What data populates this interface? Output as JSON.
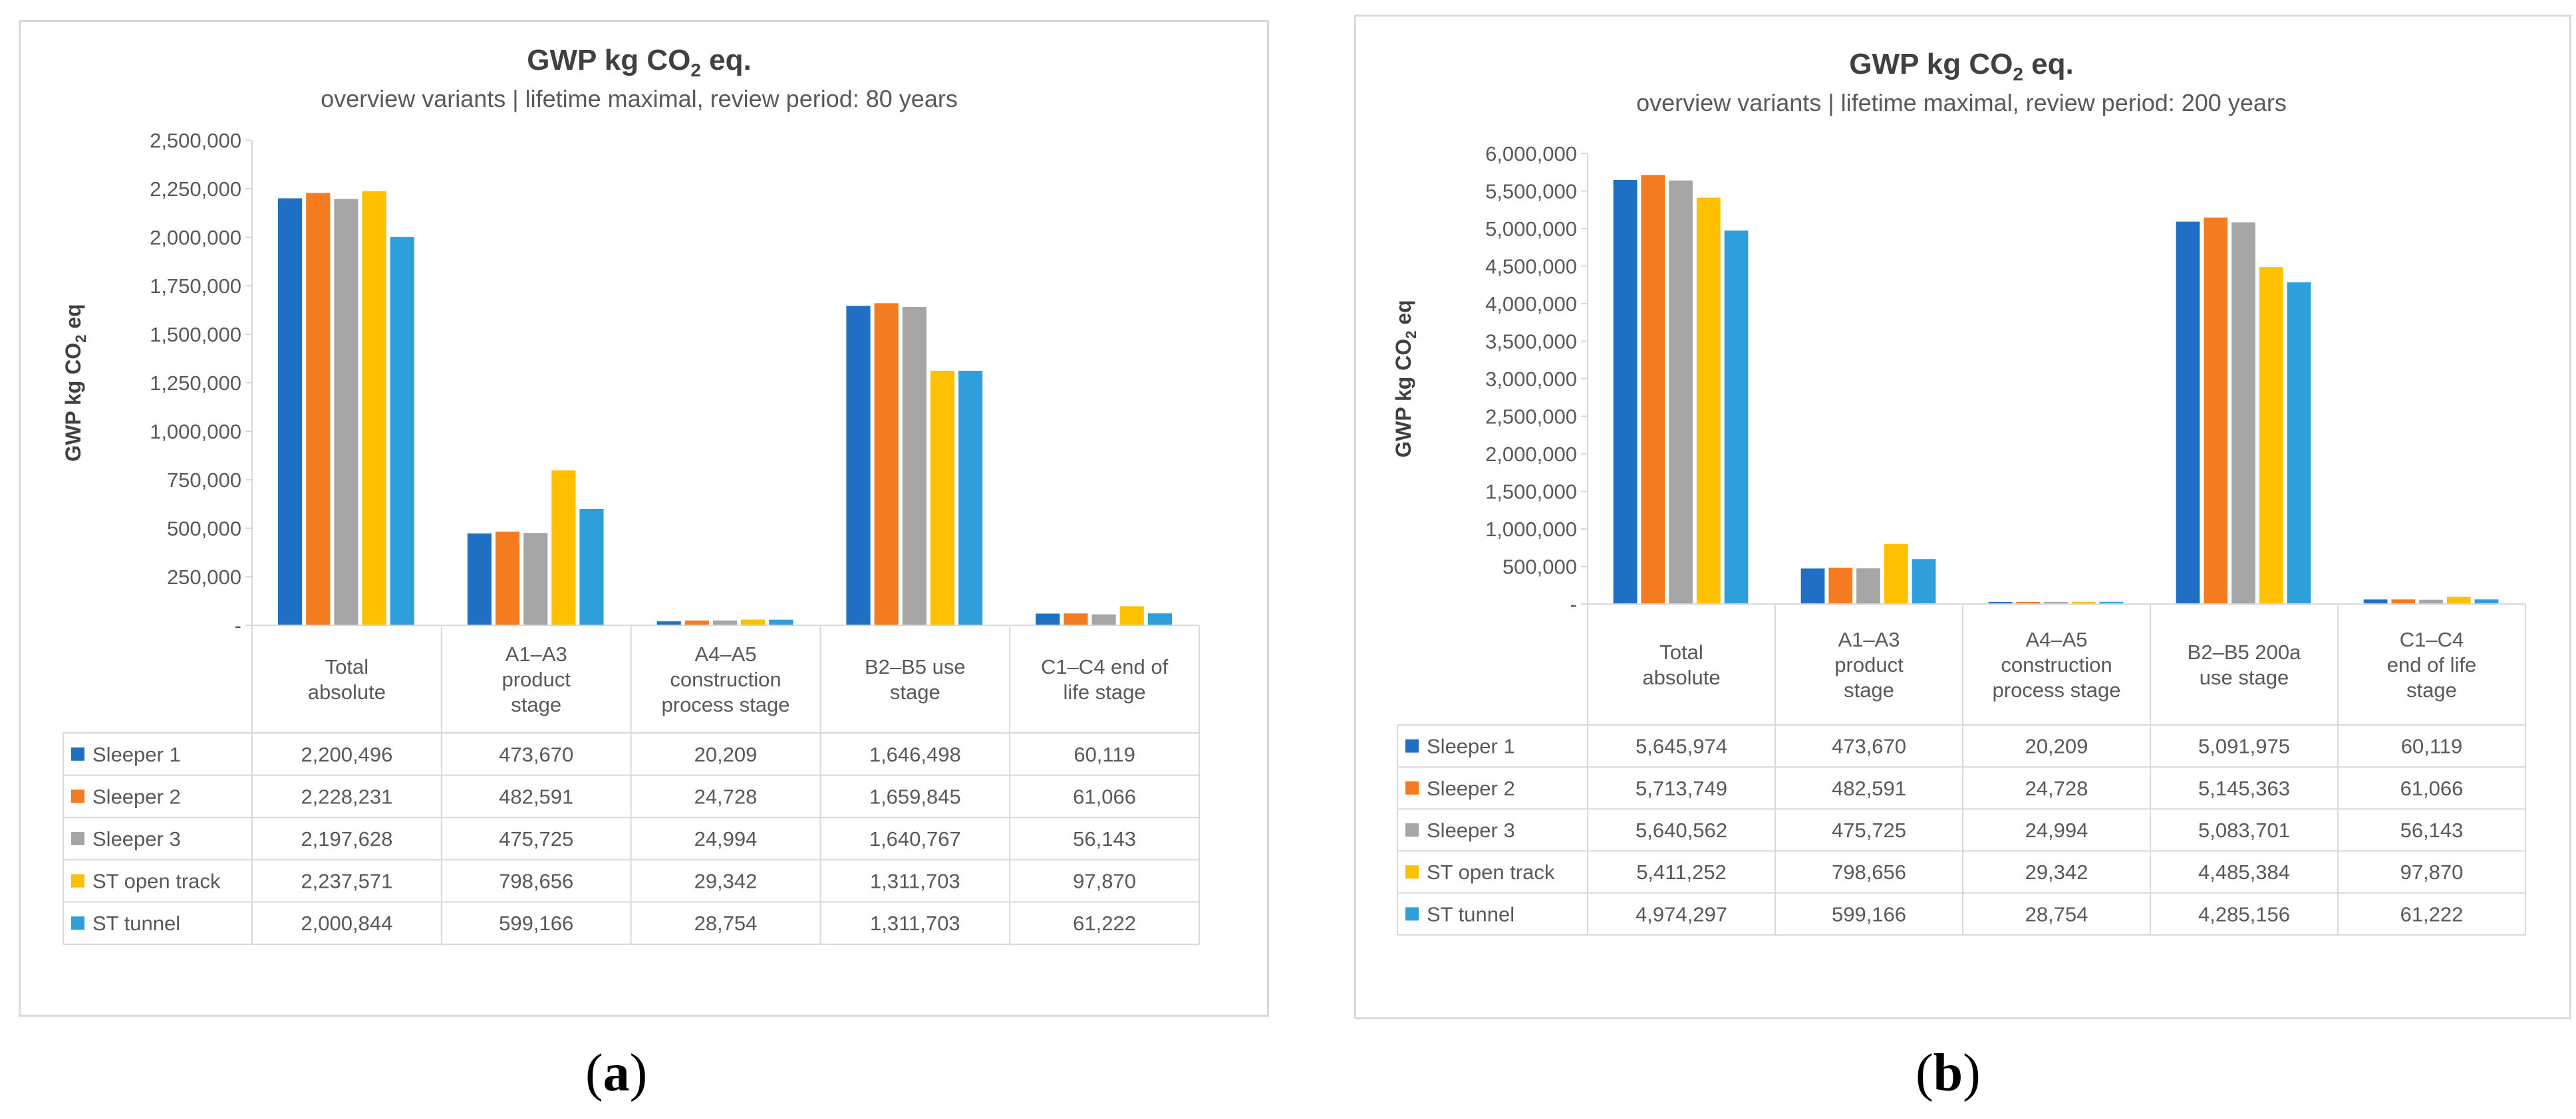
{
  "colors": {
    "series": [
      "#1f6fc5",
      "#f47b20",
      "#a6a6a6",
      "#ffc000",
      "#2e9fdb"
    ],
    "text": "#404040",
    "grid": "#d9d9d9"
  },
  "labels": {
    "a": "a",
    "b": "b"
  },
  "chart_data": [
    {
      "type": "bar",
      "title_main": "GWP kg CO",
      "title_sub": "2",
      "title_end": " eq.",
      "subtitle": "overview variants | lifetime maximal, review period: 80 years",
      "ylabel_main": "GWP kg CO",
      "ylabel_sub": "2",
      "ylabel_end": " eq",
      "ylim": [
        0,
        2500000
      ],
      "yticks": [
        "-",
        "250,000",
        "500,000",
        "750,000",
        "1,000,000",
        "1,250,000",
        "1,500,000",
        "1,750,000",
        "2,000,000",
        "2,250,000",
        "2,500,000"
      ],
      "categories": [
        [
          "Total",
          "absolute"
        ],
        [
          "A1–A3",
          "product",
          "stage"
        ],
        [
          "A4–A5",
          "construction",
          "process stage"
        ],
        [
          "B2–B5 use",
          "stage"
        ],
        [
          "C1–C4 end of",
          "life stage"
        ]
      ],
      "series": [
        {
          "name": "Sleeper 1",
          "values": [
            2200496,
            473670,
            20209,
            1646498,
            60119
          ],
          "display": [
            "2,200,496",
            "473,670",
            "20,209",
            "1,646,498",
            "60,119"
          ]
        },
        {
          "name": "Sleeper 2",
          "values": [
            2228231,
            482591,
            24728,
            1659845,
            61066
          ],
          "display": [
            "2,228,231",
            "482,591",
            "24,728",
            "1,659,845",
            "61,066"
          ]
        },
        {
          "name": "Sleeper 3",
          "values": [
            2197628,
            475725,
            24994,
            1640767,
            56143
          ],
          "display": [
            "2,197,628",
            "475,725",
            "24,994",
            "1,640,767",
            "56,143"
          ]
        },
        {
          "name": "ST open track",
          "values": [
            2237571,
            798656,
            29342,
            1311703,
            97870
          ],
          "display": [
            "2,237,571",
            "798,656",
            "29,342",
            "1,311,703",
            "97,870"
          ]
        },
        {
          "name": "ST tunnel",
          "values": [
            2000844,
            599166,
            28754,
            1311703,
            61222
          ],
          "display": [
            "2,000,844",
            "599,166",
            "28,754",
            "1,311,703",
            "61,222"
          ]
        }
      ]
    },
    {
      "type": "bar",
      "title_main": "GWP kg CO",
      "title_sub": "2",
      "title_end": " eq.",
      "subtitle": "overview variants | lifetime maximal, review period: 200 years",
      "ylabel_main": "GWP kg CO",
      "ylabel_sub": "2",
      "ylabel_end": " eq",
      "ylim": [
        0,
        6000000
      ],
      "yticks": [
        "-",
        "500,000",
        "1,000,000",
        "1,500,000",
        "2,000,000",
        "2,500,000",
        "3,000,000",
        "3,500,000",
        "4,000,000",
        "4,500,000",
        "5,000,000",
        "5,500,000",
        "6,000,000"
      ],
      "categories": [
        [
          "Total",
          "absolute"
        ],
        [
          "A1–A3",
          "product",
          "stage"
        ],
        [
          "A4–A5",
          "construction",
          "process stage"
        ],
        [
          "B2–B5 200a",
          "use stage"
        ],
        [
          "C1–C4",
          "end of life",
          "stage"
        ]
      ],
      "series": [
        {
          "name": "Sleeper 1",
          "values": [
            5645974,
            473670,
            20209,
            5091975,
            60119
          ],
          "display": [
            "5,645,974",
            "473,670",
            "20,209",
            "5,091,975",
            "60,119"
          ]
        },
        {
          "name": "Sleeper 2",
          "values": [
            5713749,
            482591,
            24728,
            5145363,
            61066
          ],
          "display": [
            "5,713,749",
            "482,591",
            "24,728",
            "5,145,363",
            "61,066"
          ]
        },
        {
          "name": "Sleeper 3",
          "values": [
            5640562,
            475725,
            24994,
            5083701,
            56143
          ],
          "display": [
            "5,640,562",
            "475,725",
            "24,994",
            "5,083,701",
            "56,143"
          ]
        },
        {
          "name": "ST open track",
          "values": [
            5411252,
            798656,
            29342,
            4485384,
            97870
          ],
          "display": [
            "5,411,252",
            "798,656",
            "29,342",
            "4,485,384",
            "97,870"
          ]
        },
        {
          "name": "ST tunnel",
          "values": [
            4974297,
            599166,
            28754,
            4285156,
            61222
          ],
          "display": [
            "4,974,297",
            "599,166",
            "28,754",
            "4,285,156",
            "61,222"
          ]
        }
      ]
    }
  ]
}
